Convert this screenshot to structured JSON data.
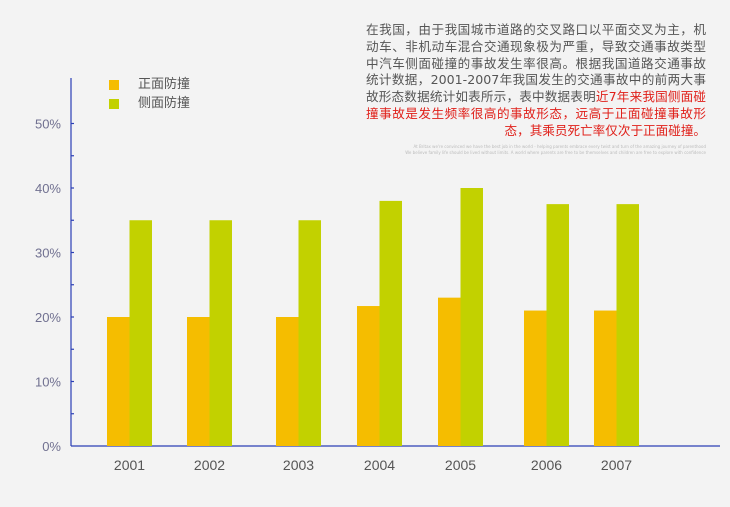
{
  "description": {
    "text_gray": "在我国，由于我国城市道路的交叉路口以平面交叉为主，机动车、非机动车混合交通现象极为严重，导致交通事故类型中汽车侧面碰撞的事故发生率很高。根据我国道路交通事故统计数据，2001-2007年我国发生的交通事故中的前两大事故形态数据统计如表所示，表中数据表明",
    "text_red": "近7年来我国侧面碰撞事故是发生频率很高的事故形态，远高于正面碰撞事故形态，其乘员死亡率仅次于正面碰撞。",
    "fine_print_1": "At Britax we're convinced we have the best job in the world - helping parents embrace every twist and turn of the amazing journey of parenthood",
    "fine_print_2": "We believe family life should be lived without limits. A world where parents are free to be themselves and children are free to explore with confidence"
  },
  "chart_data": {
    "type": "bar",
    "title": "",
    "xlabel": "",
    "ylabel": "",
    "categories": [
      "2001",
      "2002",
      "2003",
      "2004",
      "2005",
      "2006",
      "2007"
    ],
    "series": [
      {
        "name": "正面防撞",
        "color": "#f5bd00",
        "values": [
          20,
          20,
          20,
          21.7,
          23,
          21,
          21
        ]
      },
      {
        "name": "侧面防撞",
        "color": "#c2d100",
        "values": [
          35,
          35,
          35,
          38,
          40,
          37.5,
          37.5
        ]
      }
    ],
    "ylim": [
      0,
      55
    ],
    "yticks": [
      "0%",
      "10%",
      "20%",
      "30%",
      "40%",
      "50%"
    ],
    "legend_position": "top-left",
    "grid": false,
    "axis_color": "#2b3fb5"
  }
}
